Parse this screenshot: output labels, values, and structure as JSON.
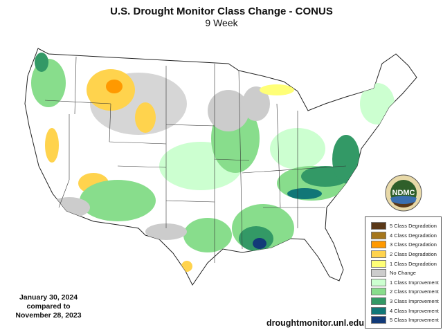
{
  "header": {
    "title": "U.S. Drought Monitor Class Change - CONUS",
    "subtitle": "9 Week"
  },
  "dates": {
    "line1": "January 30, 2024",
    "line2": "compared to",
    "line3": "November 28, 2023"
  },
  "source_url": "droughtmonitor.unl.edu",
  "logo": {
    "text": "NDMC",
    "ring_text": "National Drought Mitigation Center - University of Nebraska"
  },
  "legend": [
    {
      "label": "5 Class Degradation",
      "color": "#5a3818"
    },
    {
      "label": "4 Class Degradation",
      "color": "#a5761c"
    },
    {
      "label": "3 Class Degradation",
      "color": "#ff9900"
    },
    {
      "label": "2 Class Degradation",
      "color": "#ffd34d"
    },
    {
      "label": "1 Class Degradation",
      "color": "#ffff77"
    },
    {
      "label": "No Change",
      "color": "#cccccc"
    },
    {
      "label": "1 Class Improvement",
      "color": "#ccffd0"
    },
    {
      "label": "2 Class Improvement",
      "color": "#88dd8c"
    },
    {
      "label": "3 Class Improvement",
      "color": "#339966"
    },
    {
      "label": "4 Class Improvement",
      "color": "#117777"
    },
    {
      "label": "5 Class Improvement",
      "color": "#123a78"
    }
  ]
}
